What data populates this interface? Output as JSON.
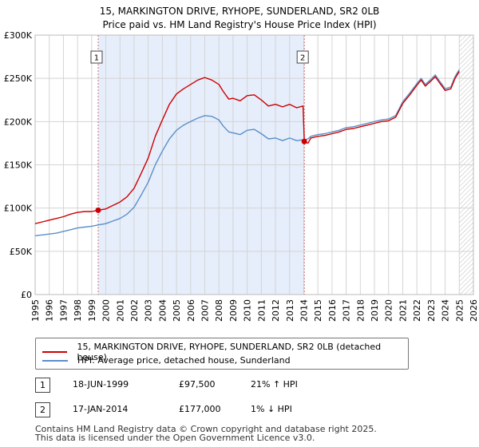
{
  "title_line1": "15, MARKINGTON DRIVE, RYHOPE, SUNDERLAND, SR2 0LB",
  "title_line2": "Price paid vs. HM Land Registry's House Price Index (HPI)",
  "legend": {
    "property_label": "15, MARKINGTON DRIVE, RYHOPE, SUNDERLAND, SR2 0LB (detached house)",
    "hpi_label": "HPI: Average price, detached house, Sunderland"
  },
  "colors": {
    "property": "#cc0000",
    "hpi": "#5b8fc9",
    "shade": "#e6eefb",
    "vline": "#d07070",
    "grid": "#d4d4d4"
  },
  "sales": [
    {
      "num": "1",
      "date": "18-JUN-1999",
      "price": "£97,500",
      "hpi_change": "21% ↑ HPI"
    },
    {
      "num": "2",
      "date": "17-JAN-2014",
      "price": "£177,000",
      "hpi_change": "1% ↓ HPI"
    }
  ],
  "footer_line1": "Contains HM Land Registry data © Crown copyright and database right 2025.",
  "footer_line2": "This data is licensed under the Open Government Licence v3.0.",
  "chart_data": {
    "type": "line",
    "title": "15, MARKINGTON DRIVE, RYHOPE, SUNDERLAND, SR2 0LB",
    "subtitle": "Price paid vs. HM Land Registry's House Price Index (HPI)",
    "xlabel": "",
    "ylabel": "",
    "xlim": [
      1995,
      2026
    ],
    "ylim": [
      0,
      300000
    ],
    "grid": true,
    "legend_position": "below",
    "x_ticks": [
      "1995",
      "1996",
      "1997",
      "1998",
      "1999",
      "2000",
      "2001",
      "2002",
      "2003",
      "2004",
      "2005",
      "2006",
      "2007",
      "2008",
      "2009",
      "2010",
      "2011",
      "2012",
      "2013",
      "2014",
      "2015",
      "2016",
      "2017",
      "2018",
      "2019",
      "2020",
      "2021",
      "2022",
      "2023",
      "2024",
      "2025",
      "2026"
    ],
    "y_ticks": [
      {
        "value": 0,
        "label": "£0"
      },
      {
        "value": 50000,
        "label": "£50K"
      },
      {
        "value": 100000,
        "label": "£100K"
      },
      {
        "value": 150000,
        "label": "£150K"
      },
      {
        "value": 200000,
        "label": "£200K"
      },
      {
        "value": 250000,
        "label": "£250K"
      },
      {
        "value": 300000,
        "label": "£300K"
      }
    ],
    "shaded_range": [
      1999.46,
      2014.04
    ],
    "future_hatch_from": 2025.0,
    "sale_markers": [
      {
        "label": "1",
        "x": 1999.46,
        "y": 97500
      },
      {
        "label": "2",
        "x": 2014.04,
        "y": 177000
      }
    ],
    "series": [
      {
        "name": "15, MARKINGTON DRIVE, RYHOPE, SUNDERLAND, SR2 0LB (detached house)",
        "x": [
          1995.0,
          1995.5,
          1996.0,
          1996.5,
          1997.0,
          1997.5,
          1998.0,
          1998.5,
          1999.0,
          1999.46,
          2000.0,
          2000.5,
          2001.0,
          2001.5,
          2002.0,
          2002.5,
          2003.0,
          2003.5,
          2004.0,
          2004.5,
          2005.0,
          2005.5,
          2006.0,
          2006.5,
          2007.0,
          2007.5,
          2008.0,
          2008.3,
          2008.7,
          2009.0,
          2009.5,
          2010.0,
          2010.5,
          2011.0,
          2011.5,
          2012.0,
          2012.5,
          2013.0,
          2013.5,
          2013.95,
          2014.04,
          2014.3,
          2014.5,
          2015.0,
          2015.5,
          2016.0,
          2016.5,
          2017.0,
          2017.5,
          2018.0,
          2018.5,
          2019.0,
          2019.5,
          2020.0,
          2020.5,
          2021.0,
          2021.5,
          2022.0,
          2022.3,
          2022.6,
          2023.0,
          2023.3,
          2023.6,
          2024.0,
          2024.4,
          2024.7,
          2025.0
        ],
        "values": [
          82000,
          84000,
          86000,
          88000,
          90000,
          93000,
          95000,
          96000,
          96000,
          97500,
          99000,
          103000,
          107000,
          113000,
          123000,
          140000,
          158000,
          183000,
          202000,
          220000,
          232000,
          238000,
          243000,
          248000,
          251000,
          248000,
          243000,
          235000,
          226000,
          227000,
          224000,
          230000,
          231000,
          225000,
          218000,
          220000,
          217000,
          220000,
          216000,
          218000,
          177000,
          175000,
          181000,
          183000,
          184000,
          186000,
          188000,
          191000,
          192000,
          194000,
          196000,
          198000,
          200000,
          201000,
          205000,
          221000,
          231000,
          242000,
          248000,
          241000,
          247000,
          252000,
          245000,
          236000,
          238000,
          250000,
          258000
        ]
      },
      {
        "name": "HPI: Average price, detached house, Sunderland",
        "x": [
          1995.0,
          1995.5,
          1996.0,
          1996.5,
          1997.0,
          1997.5,
          1998.0,
          1998.5,
          1999.0,
          1999.46,
          2000.0,
          2000.5,
          2001.0,
          2001.5,
          2002.0,
          2002.5,
          2003.0,
          2003.5,
          2004.0,
          2004.5,
          2005.0,
          2005.5,
          2006.0,
          2006.5,
          2007.0,
          2007.5,
          2008.0,
          2008.3,
          2008.7,
          2009.0,
          2009.5,
          2010.0,
          2010.5,
          2011.0,
          2011.5,
          2012.0,
          2012.5,
          2013.0,
          2013.5,
          2013.95,
          2014.04,
          2014.3,
          2014.5,
          2015.0,
          2015.5,
          2016.0,
          2016.5,
          2017.0,
          2017.5,
          2018.0,
          2018.5,
          2019.0,
          2019.5,
          2020.0,
          2020.5,
          2021.0,
          2021.5,
          2022.0,
          2022.3,
          2022.6,
          2023.0,
          2023.3,
          2023.6,
          2024.0,
          2024.4,
          2024.7,
          2025.0
        ],
        "values": [
          68000,
          69000,
          70000,
          71000,
          73000,
          75000,
          77000,
          78000,
          79000,
          80500,
          82000,
          85000,
          88000,
          93000,
          101000,
          115000,
          130000,
          150000,
          166000,
          180000,
          190000,
          196000,
          200000,
          204000,
          207000,
          206000,
          202000,
          195000,
          188000,
          187000,
          185000,
          190000,
          191000,
          186000,
          180000,
          181000,
          178000,
          181000,
          178000,
          179000,
          179000,
          180000,
          183000,
          185000,
          186000,
          188000,
          190000,
          193000,
          194000,
          196000,
          198000,
          200000,
          202000,
          203000,
          207000,
          223000,
          233000,
          244000,
          250000,
          243000,
          249000,
          254000,
          247000,
          238000,
          240000,
          252000,
          260000
        ]
      }
    ]
  }
}
